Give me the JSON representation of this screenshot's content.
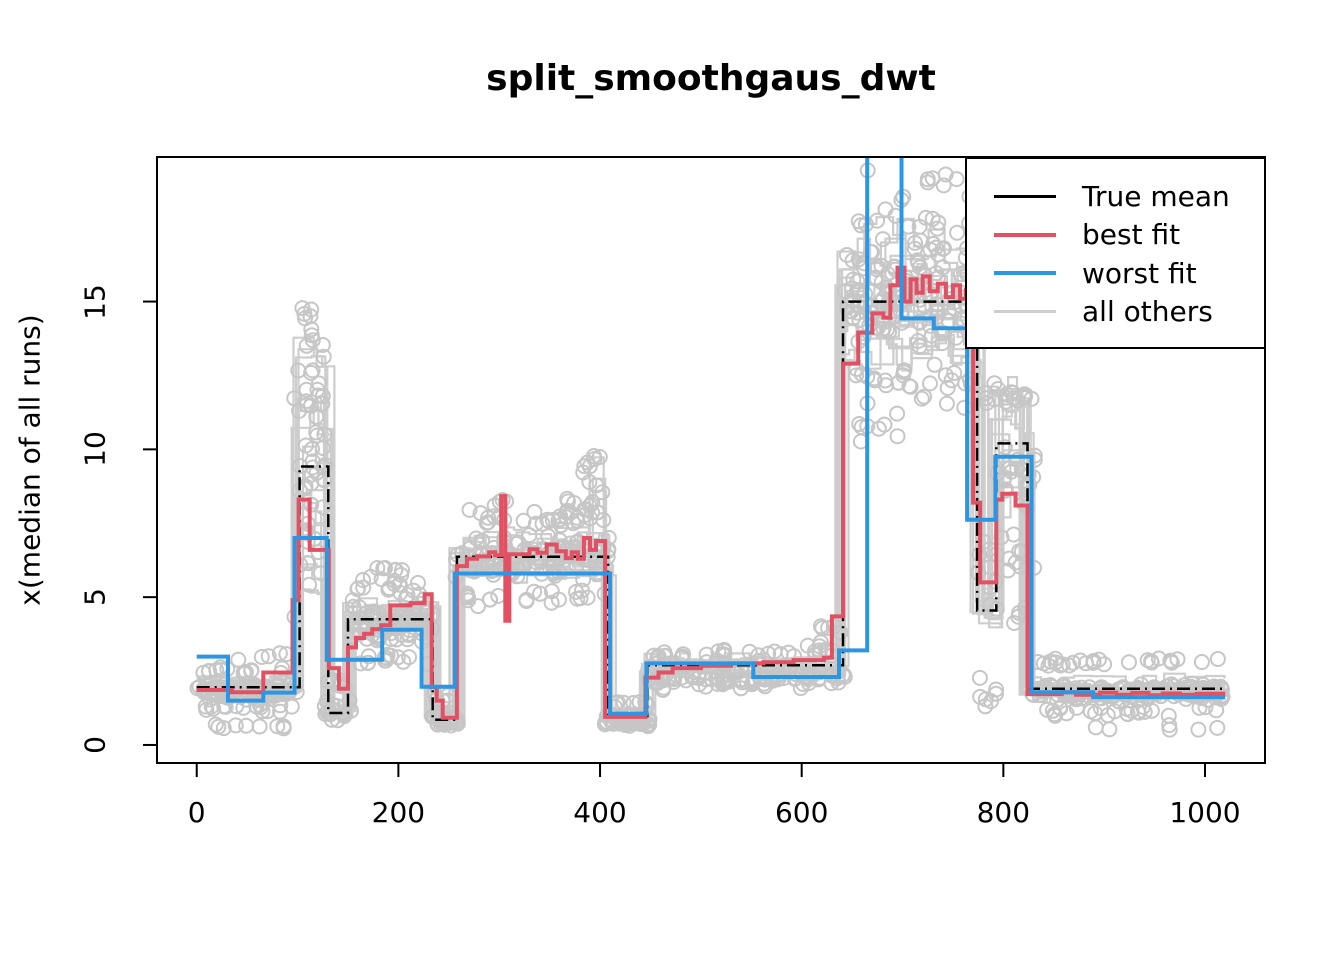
{
  "chart_data": {
    "type": "line",
    "title": "split_smoothgaus_dwt",
    "xlabel": "",
    "ylabel": "x(median of all runs)",
    "xlim": [
      -39.4,
      1059.5
    ],
    "ylim": [
      -0.61,
      19.89
    ],
    "x_ticks": [
      0,
      200,
      400,
      600,
      800,
      1000
    ],
    "y_ticks": [
      0,
      5,
      10,
      15
    ],
    "grid": false,
    "legend_position": "top-right",
    "colors": {
      "true_mean": "#000000",
      "best_fit": "#e25163",
      "worst_fit": "#2d96e2",
      "others_line": "#cdcdcd",
      "scatter": "#c6c6c6",
      "axis": "#000000",
      "background": "#ffffff"
    },
    "series": [
      {
        "name": "True mean",
        "style": "dashed",
        "width": 2.5,
        "segments": [
          [
            0,
            102,
            1.95
          ],
          [
            102,
            130.5,
            9.42
          ],
          [
            130.5,
            150,
            1.08
          ],
          [
            150,
            234,
            4.25
          ],
          [
            234,
            258,
            0.85
          ],
          [
            258,
            408,
            6.37
          ],
          [
            408,
            447,
            0.98
          ],
          [
            447,
            641,
            2.7
          ],
          [
            641,
            774,
            15.0
          ],
          [
            774,
            793,
            4.55
          ],
          [
            793,
            824,
            10.2
          ],
          [
            824,
            1020,
            1.9
          ]
        ]
      },
      {
        "name": "best fit",
        "style": "solid",
        "width": 4,
        "segments": [
          [
            0,
            35,
            1.86
          ],
          [
            35,
            66,
            1.78
          ],
          [
            66,
            95,
            2.45
          ],
          [
            95,
            101,
            4.9
          ],
          [
            101,
            112,
            8.3
          ],
          [
            112,
            131,
            6.6
          ],
          [
            131,
            141,
            2.6
          ],
          [
            141,
            150,
            1.9
          ],
          [
            150,
            158,
            3.3
          ],
          [
            158,
            166,
            3.62
          ],
          [
            166,
            174,
            3.76
          ],
          [
            174,
            183,
            3.92
          ],
          [
            183,
            192,
            4.05
          ],
          [
            192,
            212,
            4.72
          ],
          [
            212,
            226,
            4.8
          ],
          [
            226,
            233,
            5.1
          ],
          [
            233,
            238,
            1.95
          ],
          [
            238,
            244,
            1.5
          ],
          [
            244,
            258,
            0.92
          ],
          [
            258,
            268,
            6.05
          ],
          [
            268,
            278,
            6.3
          ],
          [
            278,
            290,
            6.38
          ],
          [
            290,
            296,
            6.52
          ],
          [
            296,
            302,
            6.42
          ],
          [
            302,
            306,
            8.42
          ],
          [
            306,
            310,
            4.2
          ],
          [
            310,
            330,
            6.45
          ],
          [
            330,
            338,
            6.62
          ],
          [
            338,
            347,
            6.5
          ],
          [
            347,
            357,
            6.78
          ],
          [
            357,
            366,
            6.55
          ],
          [
            366,
            372,
            6.32
          ],
          [
            372,
            378,
            6.52
          ],
          [
            378,
            384,
            6.3
          ],
          [
            384,
            390,
            7.0
          ],
          [
            390,
            396,
            6.6
          ],
          [
            396,
            405,
            6.9
          ],
          [
            405,
            445,
            0.95
          ],
          [
            445,
            458,
            2.28
          ],
          [
            458,
            472,
            2.45
          ],
          [
            472,
            500,
            2.6
          ],
          [
            500,
            530,
            2.68
          ],
          [
            530,
            562,
            2.76
          ],
          [
            562,
            592,
            2.8
          ],
          [
            592,
            622,
            2.87
          ],
          [
            622,
            630,
            2.95
          ],
          [
            630,
            641,
            4.35
          ],
          [
            641,
            656,
            12.9
          ],
          [
            656,
            670,
            13.95
          ],
          [
            670,
            681,
            14.6
          ],
          [
            681,
            688,
            14.45
          ],
          [
            688,
            695,
            15.55
          ],
          [
            695,
            702,
            16.15
          ],
          [
            702,
            708,
            15.0
          ],
          [
            708,
            714,
            15.75
          ],
          [
            714,
            720,
            15.3
          ],
          [
            720,
            727,
            15.85
          ],
          [
            727,
            735,
            15.35
          ],
          [
            735,
            743,
            15.6
          ],
          [
            743,
            750,
            15.15
          ],
          [
            750,
            757,
            15.55
          ],
          [
            757,
            763,
            15.1
          ],
          [
            763,
            770,
            15.4
          ],
          [
            770,
            777,
            8.2
          ],
          [
            777,
            793,
            5.5
          ],
          [
            793,
            799,
            8.3
          ],
          [
            799,
            812,
            8.5
          ],
          [
            812,
            824,
            8.1
          ],
          [
            824,
            858,
            1.72
          ],
          [
            858,
            872,
            1.78
          ],
          [
            872,
            896,
            1.7
          ],
          [
            896,
            912,
            1.77
          ],
          [
            912,
            928,
            1.7
          ],
          [
            928,
            944,
            1.76
          ],
          [
            944,
            958,
            1.68
          ],
          [
            958,
            975,
            1.74
          ],
          [
            975,
            992,
            1.7
          ],
          [
            992,
            1020,
            1.73
          ]
        ]
      },
      {
        "name": "worst fit",
        "style": "solid",
        "width": 4,
        "segments": [
          [
            0,
            31,
            2.99
          ],
          [
            31,
            66,
            1.5
          ],
          [
            66,
            97,
            1.77
          ],
          [
            97,
            129,
            7.0
          ],
          [
            129,
            184,
            2.88
          ],
          [
            184,
            223,
            3.9
          ],
          [
            223,
            256,
            1.97
          ],
          [
            256,
            410,
            5.8
          ],
          [
            410,
            446,
            1.06
          ],
          [
            446,
            552,
            2.76
          ],
          [
            552,
            637,
            2.3
          ],
          [
            637,
            665,
            3.2
          ],
          [
            665,
            699,
            20.8
          ],
          [
            699,
            731,
            14.43
          ],
          [
            731,
            764,
            14.1
          ],
          [
            764,
            792,
            7.62
          ],
          [
            792,
            828,
            9.75
          ],
          [
            828,
            889,
            1.78
          ],
          [
            889,
            1020,
            1.62
          ]
        ]
      },
      {
        "name": "all others",
        "style": "solid",
        "width": 2.2,
        "type": "replicates",
        "params": {
          "count": 15,
          "seed": 7,
          "cp_jitter": 8,
          "level_scale": 0.1,
          "level_abs": 0.18,
          "substep_min": 8,
          "substep_max": 22,
          "substep_scale": 0.05,
          "substep_abs": 0.09,
          "spike1_level": 9.42,
          "spike1_mult": [
            0.55,
            1.5
          ],
          "peak_level": 15.0,
          "peak_mult": [
            0.84,
            1.17
          ],
          "block_level": 10.2,
          "block_mult": [
            0.8,
            1.2
          ],
          "extra_spike_reps": [
            0,
            4,
            9
          ],
          "extra_spike_x": [
            390,
            405
          ],
          "extra_spike_y": [
            8.4,
            9.9
          ]
        }
      }
    ],
    "scatter": {
      "seed": 42,
      "radius": 7,
      "stroke_width": 2,
      "bands": [
        [
          2,
          96,
          1.8,
          0.2,
          85
        ],
        [
          4,
          95,
          1.27,
          0.1,
          16
        ],
        [
          8,
          92,
          0.66,
          0.09,
          9
        ],
        [
          6,
          95,
          2.5,
          0.12,
          14
        ],
        [
          40,
          92,
          2.95,
          0.1,
          5
        ],
        [
          96,
          128,
          12.6,
          1.5,
          20
        ],
        [
          96,
          128,
          9.4,
          1.6,
          24
        ],
        [
          98,
          126,
          6.2,
          1.4,
          12
        ],
        [
          100,
          126,
          14.6,
          0.5,
          5
        ],
        [
          128,
          152,
          1.1,
          0.28,
          16
        ],
        [
          130,
          150,
          2.1,
          0.25,
          7
        ],
        [
          150,
          234,
          4.05,
          0.42,
          75
        ],
        [
          152,
          232,
          2.9,
          0.18,
          14
        ],
        [
          154,
          230,
          5.3,
          0.28,
          20
        ],
        [
          180,
          225,
          5.9,
          0.12,
          7
        ],
        [
          234,
          258,
          0.85,
          0.16,
          34
        ],
        [
          237,
          256,
          1.6,
          0.12,
          6
        ],
        [
          258,
          408,
          6.35,
          0.5,
          125
        ],
        [
          262,
          406,
          5.0,
          0.22,
          22
        ],
        [
          264,
          404,
          7.7,
          0.28,
          30
        ],
        [
          290,
          400,
          8.2,
          0.12,
          8
        ],
        [
          383,
          407,
          9.2,
          0.55,
          10
        ],
        [
          380,
          408,
          8.0,
          0.3,
          6
        ],
        [
          406,
          451,
          0.8,
          0.15,
          60
        ],
        [
          410,
          448,
          1.42,
          0.1,
          9
        ],
        [
          450,
          641,
          2.2,
          0.24,
          105
        ],
        [
          452,
          492,
          3.0,
          0.18,
          11
        ],
        [
          505,
          548,
          3.05,
          0.18,
          10
        ],
        [
          556,
          596,
          3.0,
          0.14,
          8
        ],
        [
          600,
          640,
          3.25,
          0.28,
          12
        ],
        [
          614,
          640,
          3.9,
          0.25,
          5
        ],
        [
          644,
          776,
          15.1,
          1.2,
          140
        ],
        [
          648,
          772,
          12.4,
          0.7,
          28
        ],
        [
          652,
          774,
          17.6,
          0.7,
          24
        ],
        [
          658,
          768,
          19.1,
          0.35,
          7
        ],
        [
          646,
          700,
          10.8,
          0.5,
          8
        ],
        [
          775,
          795,
          5.6,
          1.1,
          11
        ],
        [
          776,
          794,
          1.7,
          0.5,
          7
        ],
        [
          778,
          795,
          11.9,
          0.4,
          6
        ],
        [
          795,
          830,
          9.0,
          0.75,
          22
        ],
        [
          797,
          828,
          11.7,
          0.4,
          11
        ],
        [
          799,
          829,
          6.3,
          0.6,
          9
        ],
        [
          804,
          830,
          4.3,
          0.35,
          5
        ],
        [
          830,
          1020,
          1.78,
          0.2,
          150
        ],
        [
          834,
          1016,
          2.8,
          0.1,
          28
        ],
        [
          838,
          1016,
          1.12,
          0.12,
          26
        ],
        [
          850,
          1012,
          0.58,
          0.08,
          6
        ]
      ]
    }
  },
  "legend": {
    "items": [
      {
        "label": "True mean",
        "color": "#000000",
        "thickness": 3
      },
      {
        "label": "best fit",
        "color": "#e25163",
        "thickness": 4
      },
      {
        "label": "worst fit",
        "color": "#2d96e2",
        "thickness": 4
      },
      {
        "label": "all others",
        "color": "#cdcdcd",
        "thickness": 3
      }
    ]
  }
}
